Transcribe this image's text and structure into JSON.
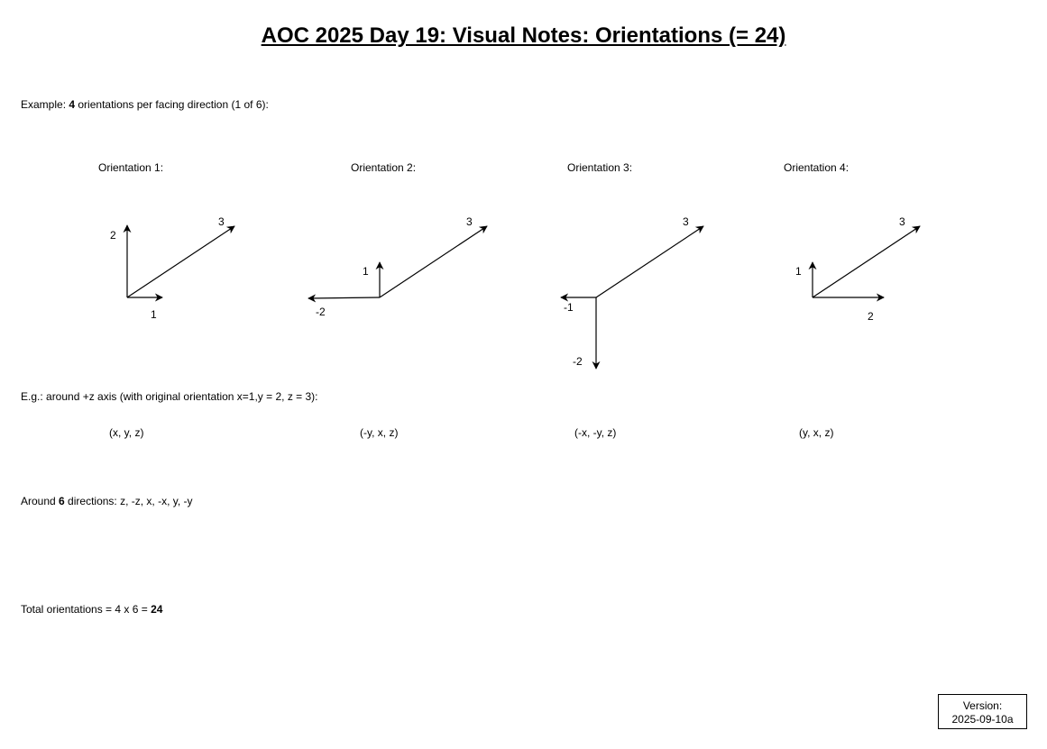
{
  "title": "AOC 2025 Day 19: Visual Notes: Orientations (= 24)",
  "example": {
    "prefix": "Example: ",
    "count": "4",
    "suffix": " orientations per facing direction (1 of 6):"
  },
  "orientations": [
    {
      "heading": "Orientation 1:",
      "axis_labels": [
        "2",
        "3",
        "1"
      ],
      "formula": "(x, y, z)"
    },
    {
      "heading": "Orientation 2:",
      "axis_labels": [
        "1",
        "3",
        "-2"
      ],
      "formula": "(-y, x, z)"
    },
    {
      "heading": "Orientation 3:",
      "axis_labels": [
        "3",
        "-1",
        "-2"
      ],
      "formula": "(-x, -y, z)"
    },
    {
      "heading": "Orientation 4:",
      "axis_labels": [
        "1",
        "3",
        "2"
      ],
      "formula": "(y, x, z)"
    }
  ],
  "eg_text": "E.g.: around +z axis (with original orientation x=1,y = 2, z = 3):",
  "around": {
    "prefix": "Around ",
    "count": "6",
    "suffix": " directions: z, -z, x, -x, y, -y"
  },
  "total": {
    "prefix": "Total orientations = 4 x 6 = ",
    "value": "24"
  },
  "version": {
    "label": "Version:",
    "value": "2025-09-10a"
  }
}
